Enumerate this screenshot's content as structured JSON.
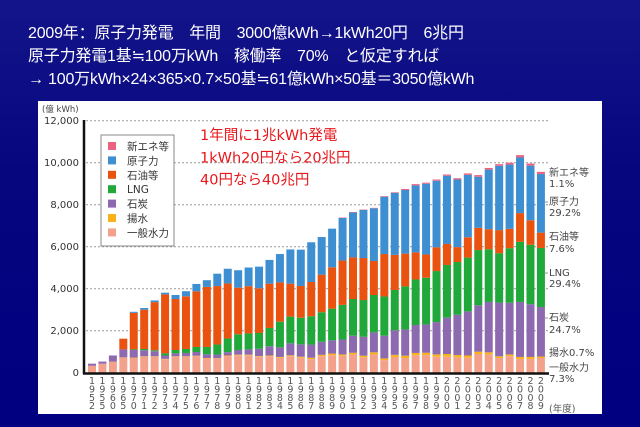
{
  "header": {
    "line1": "2009年：原子力発電　年間　3000億kWh→1kWh20円　6兆円",
    "line2": "原子力発電1基≒100万kWh　稼働率　70%　と仮定すれば",
    "line3": "→ 100万kWh×24×365×0.7×50基≒61億kWh×50基＝3050億kWh"
  },
  "annotation": {
    "line1": "1年間に1兆kWh発電",
    "line2": "1kWh20円なら20兆円",
    "line3": "40円なら40兆円"
  },
  "chart_data": {
    "type": "bar",
    "stacked": true,
    "title": "",
    "ylabel": "(億 kWh)",
    "xlabel": "(年度)",
    "ylim": [
      0,
      12000
    ],
    "yticks": [
      0,
      2000,
      4000,
      6000,
      8000,
      10000,
      12000
    ],
    "ytick_labels": [
      "0",
      "2,000",
      "4,000",
      "6,000",
      "8,000",
      "10,000",
      "12,000"
    ],
    "grid": true,
    "legend_position": "top-left",
    "categories": [
      "1952",
      "1955",
      "1960",
      "1965",
      "1970",
      "1971",
      "1972",
      "1973",
      "1974",
      "1975",
      "1976",
      "1977",
      "1978",
      "1979",
      "1980",
      "1981",
      "1982",
      "1983",
      "1984",
      "1985",
      "1986",
      "1987",
      "1988",
      "1989",
      "1990",
      "1991",
      "1992",
      "1993",
      "1994",
      "1995",
      "1996",
      "1997",
      "1998",
      "1999",
      "2000",
      "2001",
      "2002",
      "2003",
      "2004",
      "2005",
      "2006",
      "2007",
      "2008",
      "2009"
    ],
    "series": [
      {
        "name": "一般水力",
        "color": "#f4a18b",
        "values": [
          330,
          430,
          530,
          720,
          700,
          760,
          760,
          640,
          760,
          760,
          790,
          680,
          670,
          790,
          830,
          830,
          760,
          790,
          710,
          790,
          710,
          650,
          790,
          830,
          810,
          870,
          730,
          870,
          600,
          750,
          700,
          830,
          840,
          760,
          760,
          730,
          710,
          890,
          870,
          700,
          790,
          650,
          650,
          700
        ]
      },
      {
        "name": "揚水",
        "color": "#f9b21c",
        "values": [
          0,
          0,
          0,
          10,
          20,
          20,
          20,
          20,
          20,
          20,
          20,
          20,
          20,
          30,
          30,
          30,
          30,
          30,
          40,
          40,
          50,
          60,
          60,
          80,
          60,
          80,
          80,
          100,
          80,
          100,
          110,
          110,
          110,
          110,
          130,
          110,
          110,
          110,
          100,
          80,
          80,
          100,
          100,
          70
        ]
      },
      {
        "name": "石炭",
        "color": "#8d69b0",
        "values": [
          100,
          100,
          290,
          380,
          360,
          290,
          240,
          160,
          140,
          160,
          175,
          175,
          175,
          160,
          220,
          250,
          350,
          440,
          460,
          570,
          590,
          630,
          620,
          630,
          710,
          810,
          900,
          950,
          1080,
          1170,
          1250,
          1330,
          1350,
          1540,
          1730,
          1920,
          2100,
          2210,
          2400,
          2560,
          2460,
          2620,
          2510,
          2360
        ]
      },
      {
        "name": "LNG",
        "color": "#21a83a",
        "values": [
          0,
          0,
          0,
          0,
          30,
          60,
          50,
          100,
          160,
          190,
          240,
          350,
          480,
          650,
          750,
          760,
          750,
          870,
          1220,
          1270,
          1270,
          1350,
          1410,
          1510,
          1650,
          1750,
          1750,
          1780,
          1870,
          1920,
          2050,
          2170,
          2220,
          2430,
          2510,
          2510,
          2560,
          2630,
          2510,
          2350,
          2600,
          2860,
          2830,
          2810
        ]
      },
      {
        "name": "石油等",
        "color": "#e9520f",
        "values": [
          0,
          0,
          0,
          510,
          1740,
          1870,
          2290,
          2810,
          2430,
          2510,
          2650,
          2860,
          2780,
          2620,
          2220,
          2250,
          2130,
          2110,
          1870,
          1570,
          1510,
          1630,
          1790,
          1970,
          2110,
          1980,
          2000,
          1620,
          2020,
          1670,
          1560,
          1290,
          1110,
          1130,
          1000,
          710,
          970,
          1060,
          950,
          1100,
          920,
          1370,
          1170,
          730
        ]
      },
      {
        "name": "原子力",
        "color": "#3e8fd2",
        "values": [
          0,
          0,
          0,
          0,
          50,
          80,
          80,
          80,
          190,
          240,
          350,
          320,
          590,
          700,
          830,
          890,
          1030,
          1130,
          1350,
          1630,
          1730,
          1890,
          1790,
          1840,
          2030,
          2140,
          2290,
          2510,
          2730,
          2950,
          3030,
          3190,
          3370,
          3170,
          3250,
          3220,
          2970,
          2430,
          2840,
          3060,
          3060,
          2650,
          2600,
          2790
        ]
      },
      {
        "name": "新エネ等",
        "color": "#ea6480",
        "values": [
          0,
          0,
          0,
          0,
          0,
          0,
          0,
          0,
          0,
          0,
          0,
          0,
          0,
          0,
          0,
          0,
          0,
          0,
          0,
          0,
          0,
          0,
          0,
          0,
          20,
          20,
          20,
          20,
          30,
          30,
          50,
          60,
          50,
          60,
          60,
          60,
          70,
          80,
          80,
          80,
          90,
          110,
          100,
          105
        ]
      }
    ],
    "legend": [
      "新エネ等",
      "原子力",
      "石油等",
      "LNG",
      "石炭",
      "揚水",
      "一般水力"
    ],
    "end_labels_2009": [
      {
        "name": "新エネ等",
        "share": "1.1%"
      },
      {
        "name": "原子力",
        "share": "29.2%"
      },
      {
        "name": "石油等",
        "share": "7.6%"
      },
      {
        "name": "LNG",
        "share": "29.4%"
      },
      {
        "name": "石炭",
        "share": "24.7%"
      },
      {
        "name": "揚水",
        "share": "0.7%"
      },
      {
        "name": "一般水力",
        "share": "7.3%"
      }
    ]
  }
}
